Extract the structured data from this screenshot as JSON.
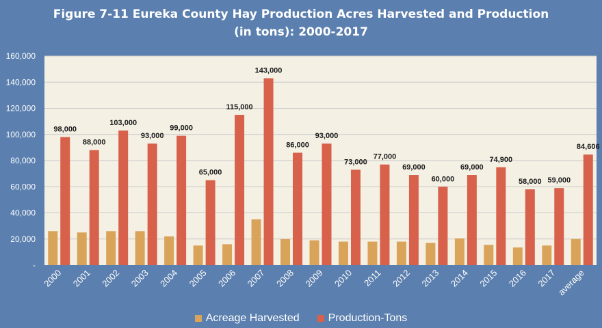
{
  "title_line1": "Figure 7-11 Eureka County Hay Production Acres Harvested and Production",
  "title_line2": "(in tons): 2000-2017",
  "chart_data": {
    "type": "bar",
    "title": "Figure 7-11 Eureka County Hay Production Acres Harvested and Production (in tons): 2000-2017",
    "xlabel": "",
    "ylabel": "",
    "ylim": [
      0,
      160000
    ],
    "yticks": [
      0,
      20000,
      40000,
      60000,
      80000,
      100000,
      120000,
      140000,
      160000
    ],
    "ytick_labels": [
      "-",
      "20,000",
      "40,000",
      "60,000",
      "80,000",
      "100,000",
      "120,000",
      "140,000",
      "160,000"
    ],
    "grid": true,
    "legend": "bottom",
    "categories": [
      "2000",
      "2001",
      "2002",
      "2003",
      "2004",
      "2005",
      "2006",
      "2007",
      "2008",
      "2009",
      "2010",
      "2011",
      "2012",
      "2013",
      "2014",
      "2015",
      "2016",
      "2017",
      "average"
    ],
    "series": [
      {
        "name": "Acreage Harvested",
        "color": "#d9a45a",
        "values": [
          26000,
          25000,
          26000,
          26000,
          22000,
          15000,
          16000,
          35000,
          20000,
          19000,
          18000,
          18000,
          18000,
          17000,
          20500,
          15500,
          13500,
          15000,
          20000
        ]
      },
      {
        "name": "Production-Tons",
        "color": "#d7614a",
        "values": [
          98000,
          88000,
          103000,
          93000,
          99000,
          65000,
          115000,
          143000,
          86000,
          93000,
          73000,
          77000,
          69000,
          60000,
          69000,
          74900,
          58000,
          59000,
          84606
        ],
        "labels": [
          "98,000",
          "88,000",
          "103,000",
          "93,000",
          "99,000",
          "65,000",
          "115,000",
          "143,000",
          "86,000",
          "93,000",
          "73,000",
          "77,000",
          "69,000",
          "60,000",
          "69,000",
          "74,900",
          "58,000",
          "59,000",
          "84,606"
        ]
      }
    ]
  },
  "colors": {
    "page_background": "#5b7fae",
    "plot_background": "#f4f0e4",
    "gridline": "#c8c8c8"
  }
}
